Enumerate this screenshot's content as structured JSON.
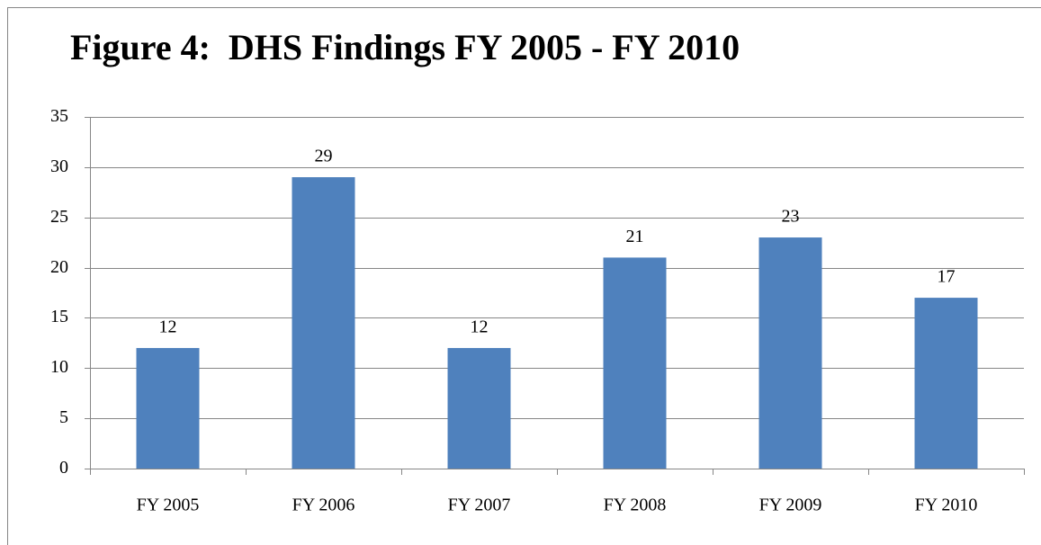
{
  "chart_data": {
    "type": "bar",
    "title": "Figure 4:  DHS Findings FY 2005 - FY 2010",
    "categories": [
      "FY 2005",
      "FY 2006",
      "FY 2007",
      "FY 2008",
      "FY 2009",
      "FY 2010"
    ],
    "values": [
      12,
      29,
      12,
      21,
      23,
      17
    ],
    "color": "#4f81bd",
    "ylim": [
      0,
      35
    ],
    "yticks": [
      0,
      5,
      10,
      15,
      20,
      25,
      30,
      35
    ],
    "grid": true
  }
}
